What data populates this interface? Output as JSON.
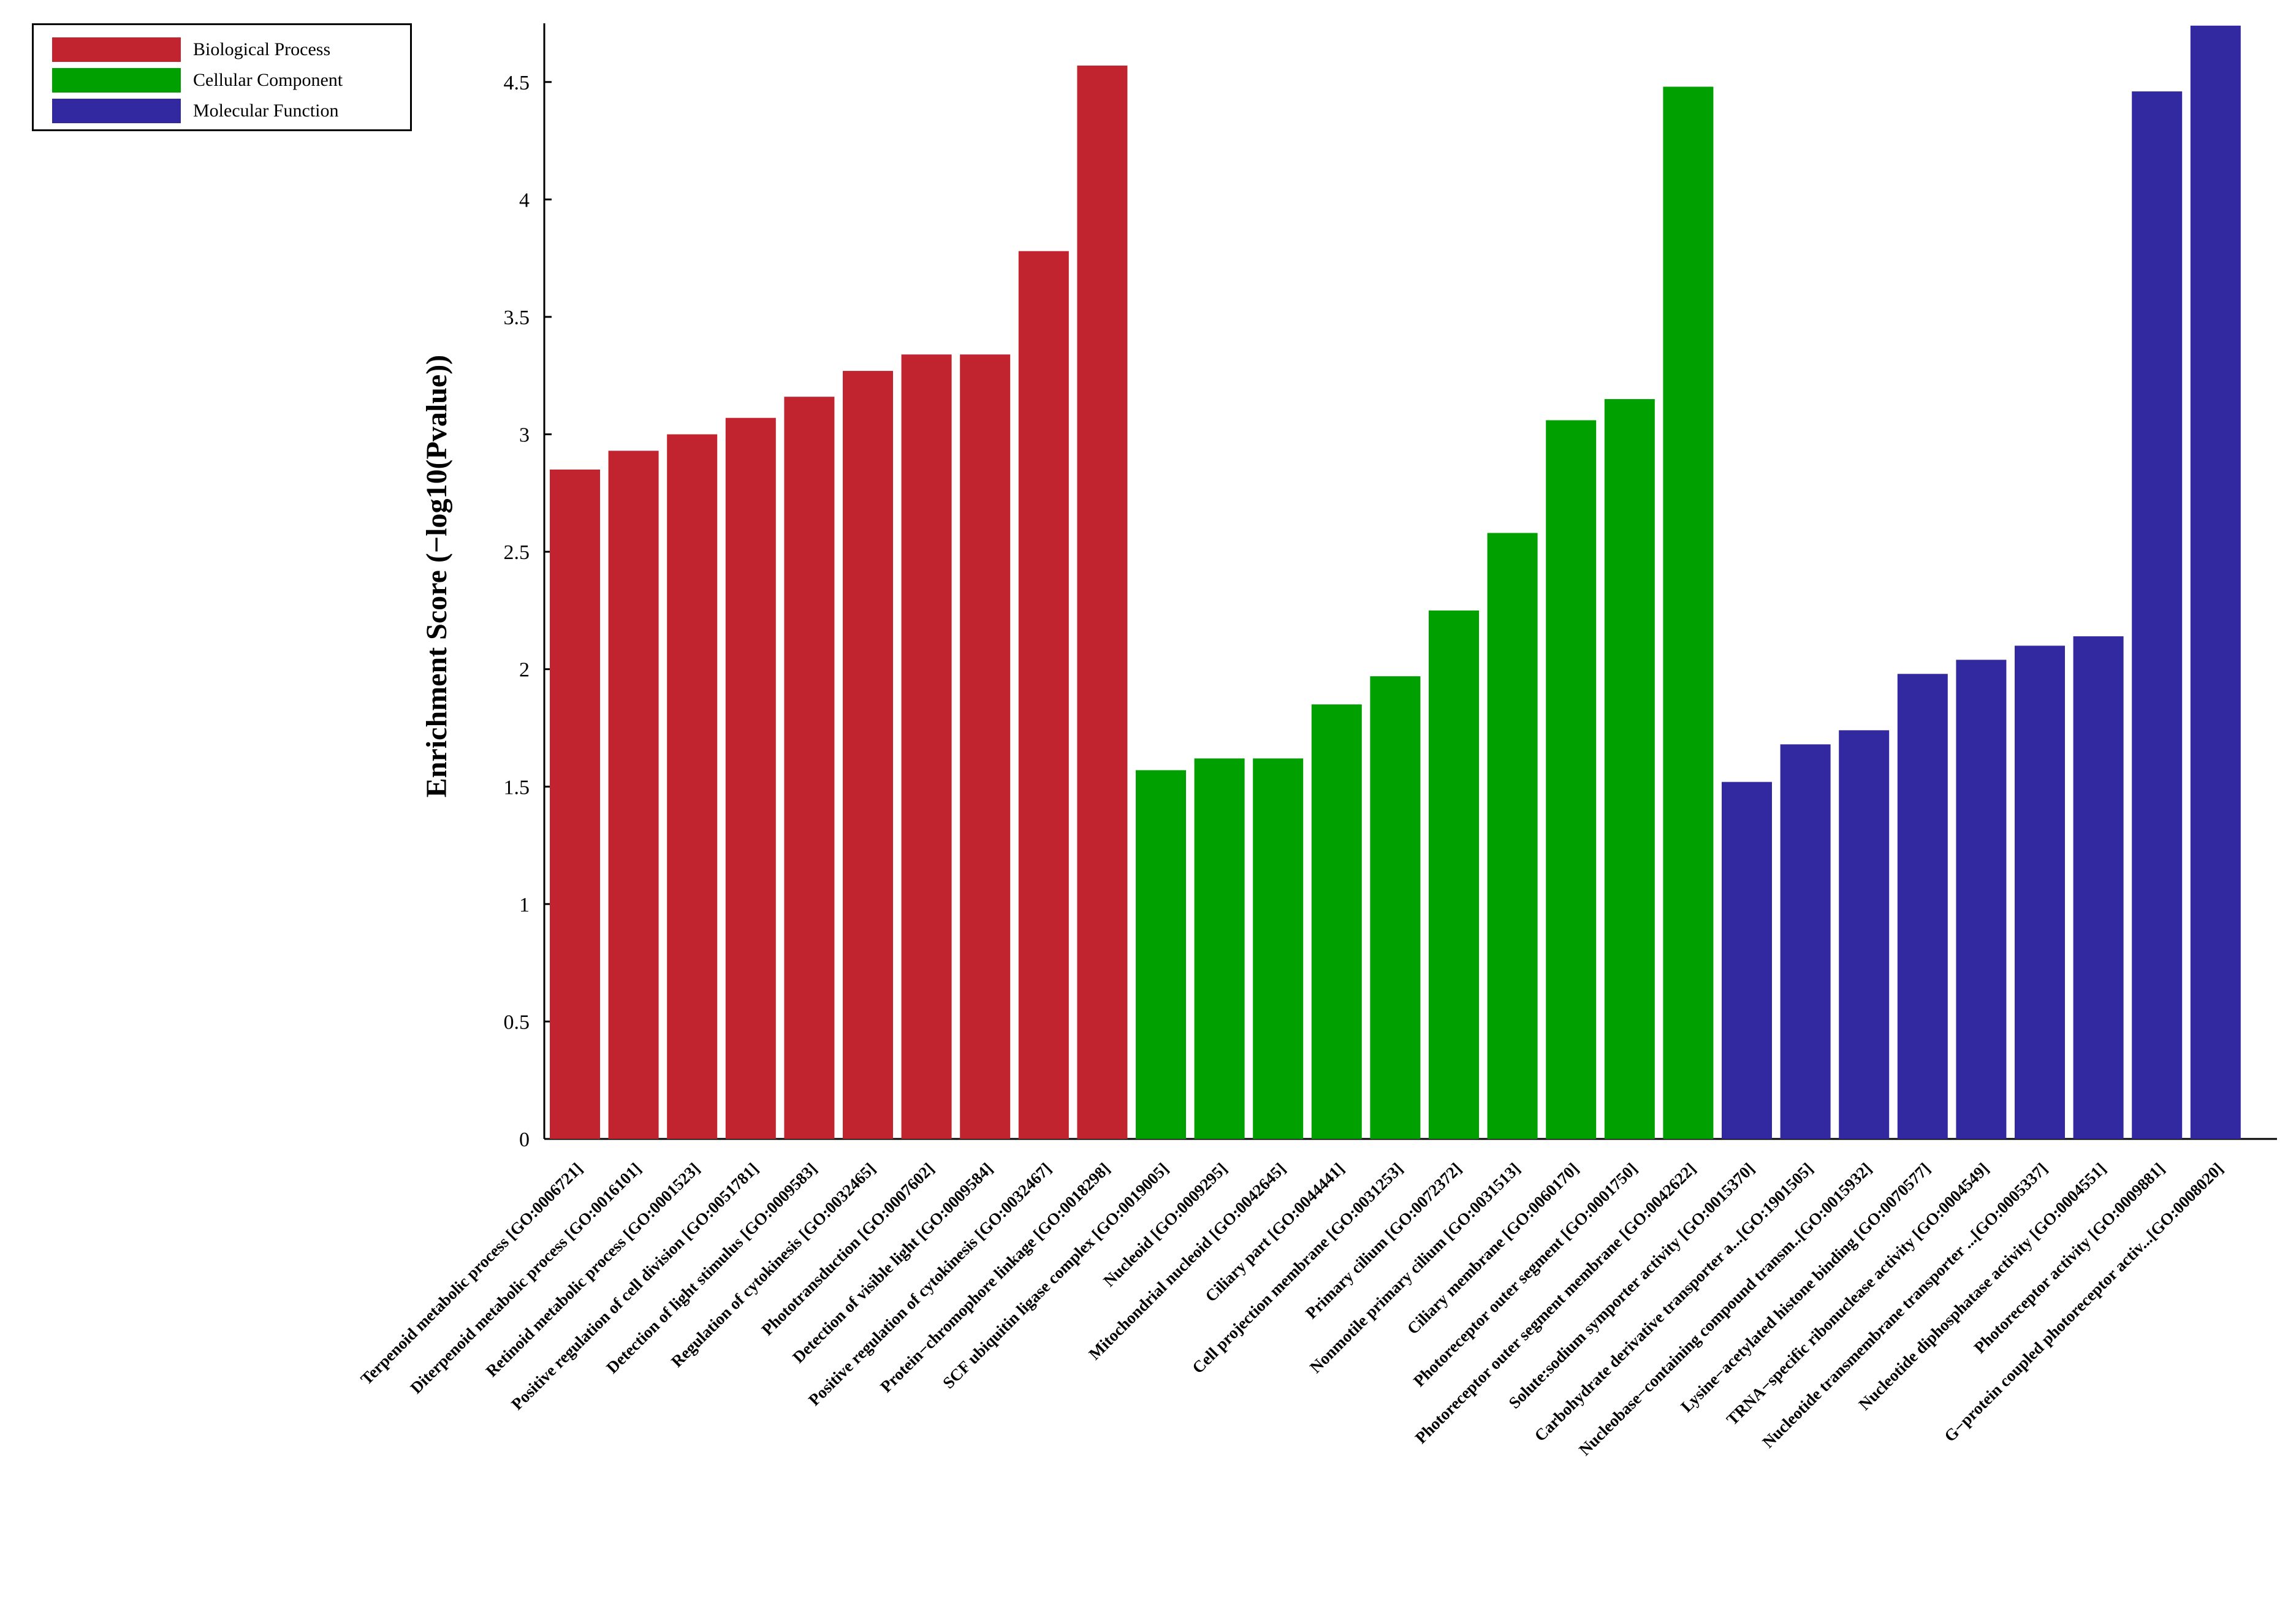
{
  "chart_data": {
    "type": "bar",
    "title": "",
    "xlabel": "",
    "ylabel": "Enrichment Score (−log10(Pvalue))",
    "ylim": [
      0,
      4.75
    ],
    "yticks": [
      "0",
      "0.5",
      "1",
      "1.5",
      "2",
      "2.5",
      "3",
      "3.5",
      "4",
      "4.5"
    ],
    "legend_position": "top-left",
    "series": [
      {
        "name": "Biological Process",
        "color": "#C1242E",
        "categories": [
          "Terpenoid metabolic process [GO:0006721]",
          "Diterpenoid metabolic process [GO:0016101]",
          "Retinoid metabolic process [GO:0001523]",
          "Positive regulation of cell division [GO:0051781]",
          "Detection of light stimulus [GO:0009583]",
          "Regulation of cytokinesis [GO:0032465]",
          "Phototransduction [GO:0007602]",
          "Detection of visible light [GO:0009584]",
          "Positive regulation of cytokinesis [GO:0032467]",
          "Protein−chromophore linkage [GO:0018298]"
        ],
        "values": [
          2.85,
          2.93,
          3.0,
          3.07,
          3.16,
          3.27,
          3.34,
          3.34,
          3.78,
          4.57
        ]
      },
      {
        "name": "Cellular Component",
        "color": "#00A000",
        "categories": [
          "SCF ubiquitin ligase complex [GO:0019005]",
          "Nucleoid [GO:0009295]",
          "Mitochondrial nucleoid [GO:0042645]",
          "Ciliary part [GO:0044441]",
          "Cell projection membrane [GO:0031253]",
          "Primary cilium [GO:0072372]",
          "Nonmotile primary cilium [GO:0031513]",
          "Ciliary membrane [GO:0060170]",
          "Photoreceptor outer segment [GO:0001750]",
          "Photoreceptor outer segment membrane [GO:0042622]"
        ],
        "values": [
          1.57,
          1.62,
          1.62,
          1.85,
          1.97,
          2.25,
          2.58,
          3.06,
          3.15,
          4.48
        ]
      },
      {
        "name": "Molecular Function",
        "color": "#3228A0",
        "categories": [
          "Solute:sodium symporter activity [GO:0015370]",
          "Carbohydrate derivative transporter a...[GO:1901505]",
          "Nucleobase−containing compound transm..[GO:0015932]",
          "Lysine−acetylated histone binding [GO:0070577]",
          "TRNA−specific ribonuclease activity [GO:0004549]",
          "Nucleotide transmembrane transporter ...[GO:0005337]",
          "Nucleotide diphosphatase activity [GO:0004551]",
          "Photoreceptor activity [GO:0009881]",
          "G−protein coupled photoreceptor activ...[GO:0008020]"
        ],
        "values": [
          1.52,
          1.68,
          1.74,
          1.98,
          2.04,
          2.1,
          2.14,
          4.46,
          4.74
        ]
      }
    ]
  }
}
